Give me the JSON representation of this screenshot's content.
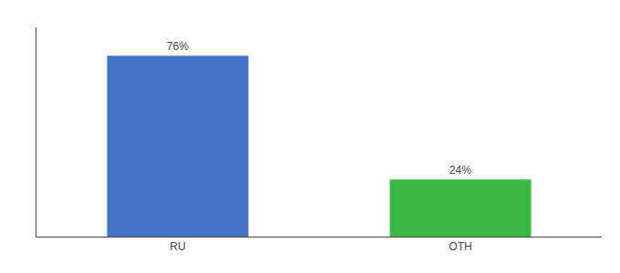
{
  "chart_data": {
    "type": "bar",
    "categories": [
      "RU",
      "OTH"
    ],
    "values": [
      76,
      24
    ],
    "value_labels": [
      "76%",
      "24%"
    ],
    "colors": [
      "#4472c4",
      "#3cb943"
    ],
    "ylim": [
      0,
      88
    ],
    "yticks": [],
    "grid": false,
    "data_labels": true,
    "tick_labels": "x"
  }
}
